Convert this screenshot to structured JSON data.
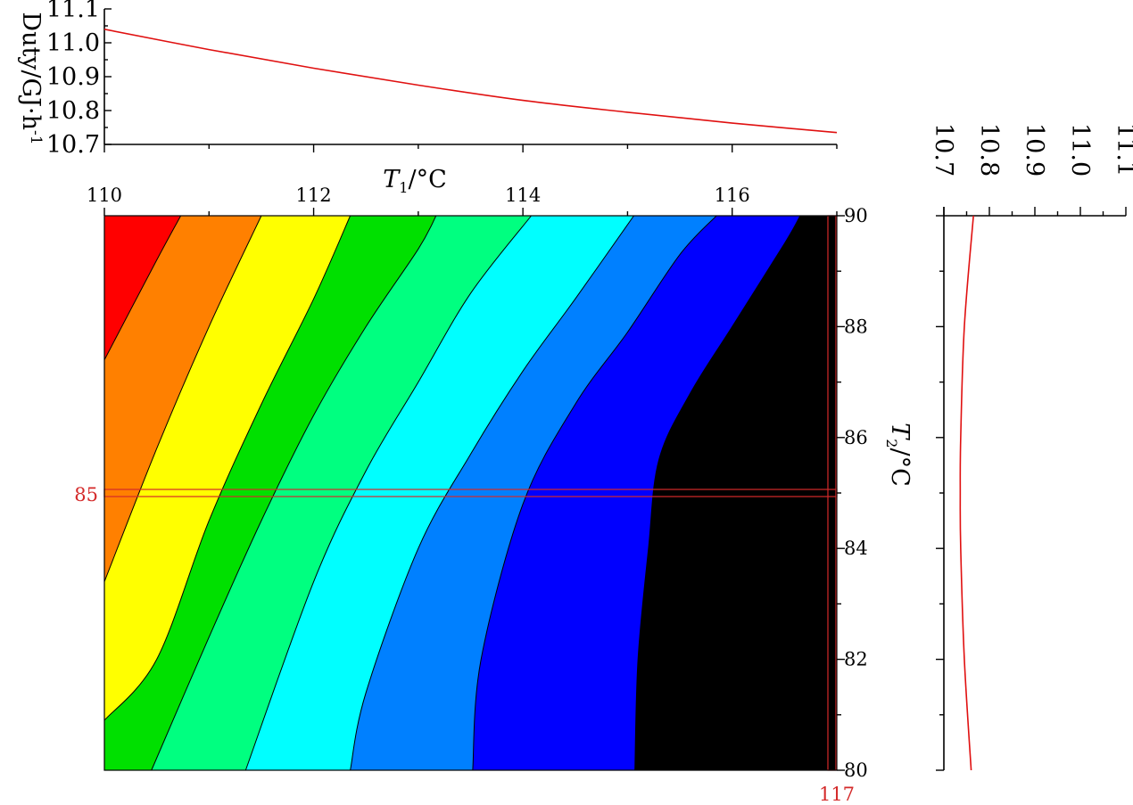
{
  "colors": {
    "curve": "#e01010",
    "marker": "#d42a2a",
    "contour_levels": [
      "#ff0000",
      "#ff8000",
      "#ffff00",
      "#00e000",
      "#00ff80",
      "#00ffff",
      "#0080ff",
      "#0000ff",
      "#000000"
    ]
  },
  "chart_data": [
    {
      "id": "top-profile",
      "type": "line",
      "ylabel": "Duty/GJ·h",
      "ylabel_sup": "-1",
      "xlim": [
        110,
        117
      ],
      "ylim": [
        10.7,
        11.1
      ],
      "y_ticks": [
        "10.7",
        "10.8",
        "10.9",
        "11.0",
        "11.1"
      ],
      "x": [
        110,
        111,
        112,
        113,
        114,
        115,
        116,
        117
      ],
      "y": [
        11.04,
        10.98,
        10.925,
        10.875,
        10.83,
        10.795,
        10.763,
        10.735
      ]
    },
    {
      "id": "contour-map",
      "type": "heatmap",
      "xlabel": "T",
      "xlabel_sub": "1",
      "xlabel_unit": "/°C",
      "ylabel": "T",
      "ylabel_sub": "2",
      "ylabel_unit": "/°C",
      "xlim": [
        110,
        117
      ],
      "ylim": [
        80,
        90
      ],
      "x_ticks": [
        "110",
        "112",
        "114",
        "116"
      ],
      "y_ticks": [
        "80",
        "82",
        "84",
        "86",
        "88",
        "90"
      ],
      "marker_x": "117",
      "marker_y": "85",
      "boundaries": [
        [
          [
            110.0,
            87.4
          ],
          [
            110.5,
            89.2
          ],
          [
            110.73,
            90
          ]
        ],
        [
          [
            110.0,
            83.4
          ],
          [
            110.5,
            85.8
          ],
          [
            111.0,
            88.0
          ],
          [
            111.5,
            90
          ]
        ],
        [
          [
            110.0,
            80.9
          ],
          [
            110.5,
            82.0
          ],
          [
            111.0,
            84.5
          ],
          [
            111.5,
            86.6
          ],
          [
            112.0,
            88.5
          ],
          [
            112.35,
            90
          ]
        ],
        [
          [
            110.45,
            80
          ],
          [
            111.0,
            82.4
          ],
          [
            111.5,
            84.5
          ],
          [
            112.0,
            86.4
          ],
          [
            112.5,
            88.0
          ],
          [
            113.0,
            89.4
          ],
          [
            113.17,
            90
          ]
        ],
        [
          [
            111.35,
            80
          ],
          [
            112.0,
            83.4
          ],
          [
            112.5,
            85.4
          ],
          [
            113.0,
            87.0
          ],
          [
            113.5,
            88.6
          ],
          [
            114.08,
            90
          ]
        ],
        [
          [
            112.35,
            80
          ],
          [
            112.5,
            81.4
          ],
          [
            113.0,
            84.0
          ],
          [
            113.5,
            85.7
          ],
          [
            114.0,
            87.2
          ],
          [
            114.5,
            88.5
          ],
          [
            115.06,
            90
          ]
        ],
        [
          [
            113.52,
            80
          ],
          [
            113.6,
            82.0
          ],
          [
            114.0,
            84.8
          ],
          [
            114.5,
            86.6
          ],
          [
            115.0,
            87.9
          ],
          [
            115.5,
            89.3
          ],
          [
            115.85,
            90
          ]
        ],
        [
          [
            115.07,
            80
          ],
          [
            115.1,
            82.0
          ],
          [
            115.2,
            84.0
          ],
          [
            115.3,
            85.6
          ],
          [
            115.6,
            86.8
          ],
          [
            116.0,
            88.0
          ],
          [
            116.5,
            89.5
          ],
          [
            116.65,
            90
          ]
        ]
      ],
      "black_region_center": [
        117,
        84.8
      ]
    },
    {
      "id": "right-profile",
      "type": "line",
      "xlim": [
        10.7,
        11.1
      ],
      "ylim": [
        80,
        90
      ],
      "x_ticks": [
        "10.7",
        "10.8",
        "10.9",
        "11.0",
        "11.1"
      ],
      "y": [
        80,
        82,
        84,
        85,
        86,
        88,
        90
      ],
      "x": [
        10.76,
        10.745,
        10.737,
        10.736,
        10.737,
        10.745,
        10.765
      ]
    }
  ]
}
